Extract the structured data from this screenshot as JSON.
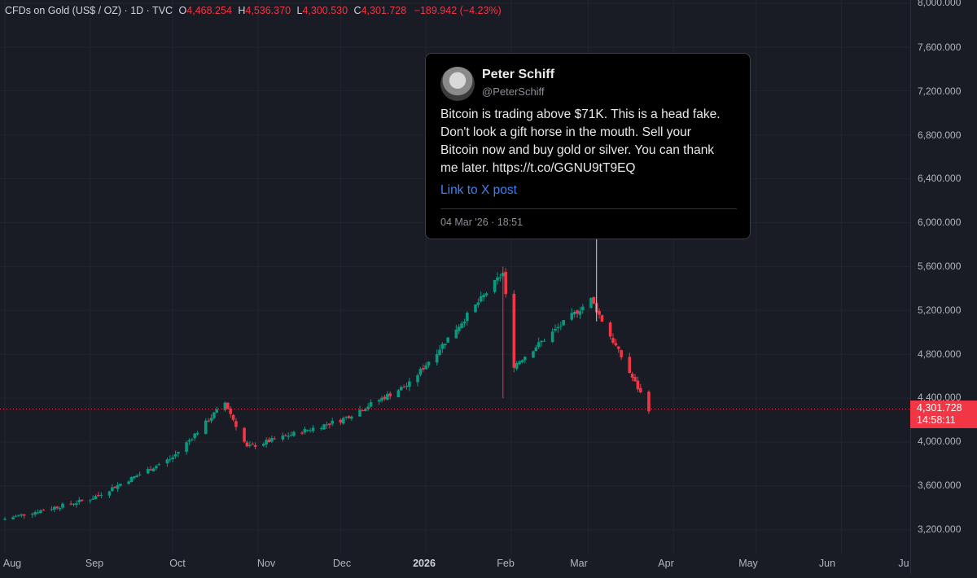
{
  "legend": {
    "symbol": "CFDs on Gold (US$ / OZ) · 1D · TVC",
    "open_key": "O",
    "open": "4,468.254",
    "high_key": "H",
    "high": "4,536.370",
    "low_key": "L",
    "low": "4,300.530",
    "close_key": "C",
    "close": "4,301.728",
    "change": "−189.942 (−4.23%)"
  },
  "price_axis": {
    "ticks": [
      "8,000.000",
      "7,600.000",
      "7,200.000",
      "6,800.000",
      "6,400.000",
      "6,000.000",
      "5,600.000",
      "5,200.000",
      "4,800.000",
      "4,400.000",
      "4,000.000",
      "3,600.000",
      "3,200.000"
    ],
    "last_price": "4,301.728",
    "countdown": "14:58:11"
  },
  "time_axis": {
    "ticks": [
      "Aug",
      "Sep",
      "Oct",
      "Nov",
      "Dec",
      "2026",
      "Feb",
      "Mar",
      "Apr",
      "May",
      "Jun",
      "Ju"
    ]
  },
  "tweet": {
    "author": "Peter Schiff",
    "handle": "@PeterSchiff",
    "lines": [
      "Bitcoin is trading above $71K. This is a head fake.",
      "Don't look a gift horse in the mouth. Sell your",
      "Bitcoin now and buy gold or silver. You can thank",
      "me later. https://t.co/GGNU9tT9EQ"
    ],
    "link_label": "Link to X post",
    "date": "04 Mar '26 · 18:51"
  },
  "colors": {
    "up": "#089981",
    "down": "#f23645",
    "background": "#1a1c25"
  },
  "chart_data": {
    "type": "candlestick",
    "title": "",
    "ylim": [
      3150,
      8000
    ],
    "x": [
      "Aug",
      "Sep",
      "Oct",
      "Nov",
      "Dec",
      "2026",
      "Feb",
      "Mar",
      "Apr",
      "May",
      "Jun",
      "Ju"
    ],
    "last_price": 4301.728,
    "key_points": [
      {
        "date": "2025-08-01",
        "close": 3300
      },
      {
        "date": "2025-09-01",
        "close": 3480
      },
      {
        "date": "2025-10-01",
        "close": 3860
      },
      {
        "date": "2025-10-20",
        "close": 4360
      },
      {
        "date": "2025-10-28",
        "close": 3950
      },
      {
        "date": "2025-12-01",
        "close": 4200
      },
      {
        "date": "2025-12-26",
        "close": 4530
      },
      {
        "date": "2026-01-29",
        "close": 5540
      },
      {
        "date": "2026-02-02",
        "close": 4700
      },
      {
        "date": "2026-03-02",
        "close": 5300
      },
      {
        "date": "2026-03-23",
        "close": 4301.728
      }
    ]
  }
}
